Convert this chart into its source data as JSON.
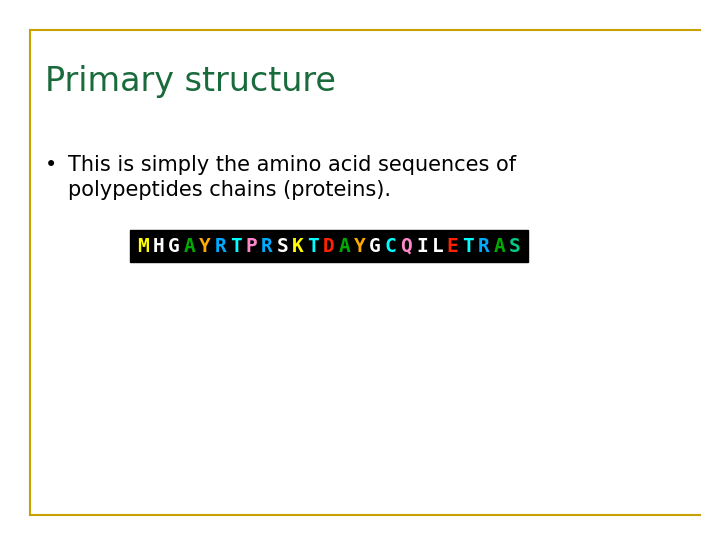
{
  "title": "Primary structure",
  "title_color": "#1a6b3c",
  "title_fontsize": 24,
  "bullet_text_line1": "This is simply the amino acid sequences of",
  "bullet_text_line2": "polypeptides chains (proteins).",
  "bullet_fontsize": 15,
  "bullet_color": "#000000",
  "background_color": "#ffffff",
  "border_color": "#c8a000",
  "sequence": [
    "M",
    "H",
    "G",
    "A",
    "Y",
    "R",
    "T",
    "P",
    "R",
    "S",
    "K",
    "T",
    "D",
    "A",
    "Y",
    "G",
    "C",
    "Q",
    "I",
    "L",
    "E",
    "T",
    "R",
    "A",
    "S"
  ],
  "seq_colors": [
    "#ffff00",
    "#ffffff",
    "#ffffff",
    "#00aa00",
    "#ffaa00",
    "#00aaff",
    "#00ffff",
    "#ff88cc",
    "#00aaff",
    "#ffffff",
    "#ffff00",
    "#00ffff",
    "#ff2200",
    "#00aa00",
    "#ffaa00",
    "#ffffff",
    "#00ffff",
    "#ff88cc",
    "#ffffff",
    "#ffffff",
    "#ff2200",
    "#00ffff",
    "#00aaff",
    "#00aa00",
    "#00cc88"
  ],
  "seq_bg": "#000000",
  "seq_fontsize": 14
}
